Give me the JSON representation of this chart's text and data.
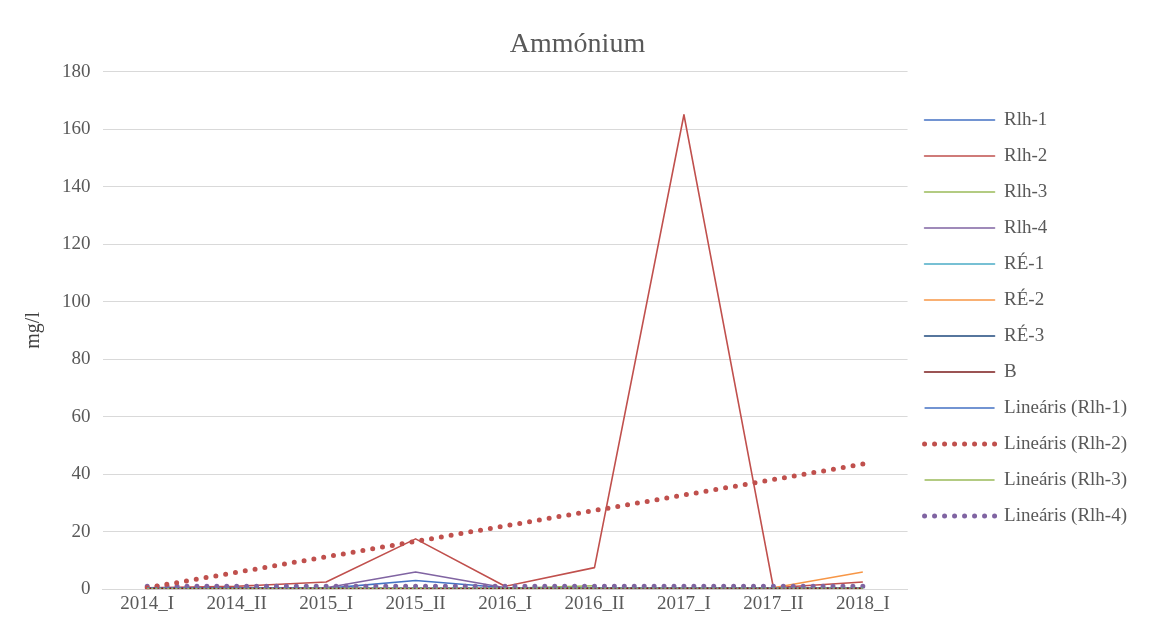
{
  "chart_data": {
    "type": "line",
    "title": "Ammónium",
    "ylabel": "mg/l",
    "categories": [
      "2014_I",
      "2014_II",
      "2015_I",
      "2015_II",
      "2016_I",
      "2016_II",
      "2017_I",
      "2017_II",
      "2018_I"
    ],
    "ylim": [
      0,
      180
    ],
    "yticks": [
      0,
      20,
      40,
      60,
      80,
      100,
      120,
      140,
      160,
      180
    ],
    "grid": "y",
    "legend": "right",
    "marker": "none",
    "series": [
      {
        "name": "Rlh-1",
        "color": "#4472c4",
        "values": [
          0.3,
          0.3,
          0.3,
          3,
          0.5,
          0.3,
          0.3,
          0.3,
          0.5
        ]
      },
      {
        "name": "Rlh-2",
        "color": "#c0504d",
        "values": [
          0.5,
          1,
          2.5,
          17.5,
          1,
          7.5,
          165,
          0.5,
          2.5
        ]
      },
      {
        "name": "Rlh-3",
        "color": "#9bbb59",
        "values": [
          null,
          null,
          null,
          null,
          0.3,
          1.2,
          null,
          null,
          null
        ]
      },
      {
        "name": "Rlh-4",
        "color": "#8064a2",
        "values": [
          0.5,
          0.5,
          0.5,
          6,
          0.5,
          0.5,
          0.5,
          0.5,
          0.5
        ]
      },
      {
        "name": "RÉ-1",
        "color": "#4bacc6",
        "values": [
          null,
          null,
          null,
          null,
          null,
          null,
          null,
          null,
          null
        ]
      },
      {
        "name": "RÉ-2",
        "color": "#f79646",
        "values": [
          null,
          null,
          null,
          null,
          null,
          null,
          null,
          0.5,
          6
        ]
      },
      {
        "name": "RÉ-3",
        "color": "#1f497d",
        "values": [
          null,
          null,
          null,
          null,
          null,
          null,
          null,
          null,
          null
        ]
      },
      {
        "name": "B",
        "color": "#7b1c1c",
        "values": [
          0.3,
          0.3,
          0.3,
          0.3,
          0.3,
          0.3,
          0.3,
          0.3,
          0.3
        ]
      },
      {
        "name": "Lineáris (Rlh-1)",
        "type": "line",
        "line_style": "dotted",
        "color": "#4472c4",
        "x": [
          "2014_I",
          "2018_I"
        ],
        "values": [
          0.5,
          0.5
        ]
      },
      {
        "name": "Lineáris (Rlh-2)",
        "type": "line",
        "line_style": "dotted",
        "color": "#c0504d",
        "x": [
          "2014_I",
          "2018_I"
        ],
        "values": [
          0.5,
          43.5
        ]
      },
      {
        "name": "Lineáris (Rlh-3)",
        "type": "line",
        "line_style": "dotted",
        "color": "#9bbb59",
        "x": [
          "2014_I",
          "2018_I"
        ],
        "values": [
          0.3,
          0.4
        ]
      },
      {
        "name": "Lineáris (Rlh-4)",
        "type": "line",
        "line_style": "dotted",
        "color": "#8064a2",
        "x": [
          "2014_I",
          "2018_I"
        ],
        "values": [
          1,
          1
        ]
      }
    ]
  }
}
